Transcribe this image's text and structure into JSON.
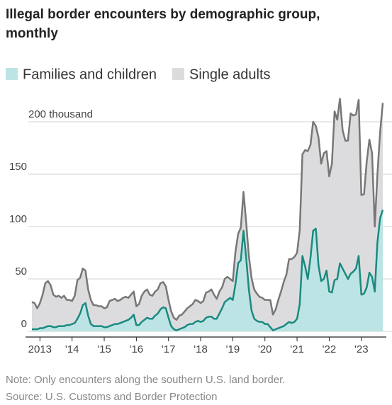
{
  "chart_data": {
    "type": "stacked_area",
    "title": [
      "Illegal border encounters by demographic group,",
      "monthly"
    ],
    "note": "Note: Only encounters along the southern U.S. land border.",
    "source": "Source: U.S. Customs and Border Protection",
    "categories": [
      null,
      null,
      null,
      "2013",
      null,
      null,
      null,
      null,
      null,
      null,
      null,
      null,
      null,
      null,
      null,
      "'14",
      null,
      null,
      null,
      null,
      null,
      null,
      null,
      null,
      null,
      null,
      null,
      "'15",
      null,
      null,
      null,
      null,
      null,
      null,
      null,
      null,
      null,
      null,
      null,
      "'16",
      null,
      null,
      null,
      null,
      null,
      null,
      null,
      null,
      null,
      null,
      null,
      "'17",
      null,
      null,
      null,
      null,
      null,
      null,
      null,
      null,
      null,
      null,
      null,
      "'18",
      null,
      null,
      null,
      null,
      null,
      null,
      null,
      null,
      null,
      null,
      null,
      "'19",
      null,
      null,
      null,
      null,
      null,
      null,
      null,
      null,
      null,
      null,
      null,
      "'20",
      null,
      null,
      null,
      null,
      null,
      null,
      null,
      null,
      null,
      null,
      null,
      "'21",
      null,
      null,
      null,
      null,
      null,
      null,
      null,
      null,
      null,
      null,
      null,
      "'22",
      null,
      null,
      null,
      null,
      null,
      null,
      null,
      null,
      null,
      null,
      null,
      "'23",
      null,
      null,
      null,
      null,
      null,
      null,
      null,
      null
    ],
    "series": [
      {
        "name": "Families and children",
        "color": "#bde4e4",
        "line_color": "#1a8a80",
        "values": [
          2,
          2,
          2,
          3,
          3,
          4,
          5,
          5,
          4,
          4,
          5,
          5,
          5,
          6,
          6,
          7,
          8,
          12,
          17,
          25,
          27,
          15,
          7,
          5,
          5,
          5,
          5,
          4,
          4,
          5,
          6,
          7,
          7,
          8,
          9,
          10,
          11,
          13,
          16,
          6,
          6,
          9,
          11,
          13,
          12,
          12,
          15,
          17,
          21,
          23,
          22,
          13,
          5,
          2,
          1,
          2,
          3,
          4,
          6,
          7,
          7,
          9,
          10,
          9,
          10,
          13,
          14,
          14,
          12,
          12,
          17,
          22,
          28,
          30,
          32,
          30,
          45,
          65,
          68,
          96,
          70,
          40,
          20,
          12,
          10,
          9,
          9,
          7,
          7,
          4,
          1,
          2,
          3,
          4,
          5,
          7,
          9,
          8,
          9,
          12,
          26,
          72,
          62,
          50,
          70,
          96,
          98,
          63,
          48,
          50,
          58,
          38,
          37,
          49,
          50,
          65,
          60,
          55,
          50,
          55,
          57,
          60,
          72,
          35,
          36,
          42,
          56,
          52,
          38,
          85,
          108,
          116
        ]
      },
      {
        "name": "Single adults",
        "color": "#dcdcde",
        "line_color": "#777777",
        "values": [
          26,
          25,
          20,
          24,
          32,
          42,
          43,
          39,
          31,
          29,
          29,
          27,
          29,
          24,
          24,
          22,
          26,
          37,
          34,
          35,
          31,
          25,
          23,
          20,
          20,
          19,
          19,
          18,
          19,
          24,
          24,
          24,
          22,
          22,
          23,
          23,
          21,
          22,
          22,
          18,
          20,
          25,
          27,
          27,
          23,
          22,
          23,
          23,
          25,
          24,
          21,
          17,
          14,
          11,
          10,
          13,
          13,
          15,
          16,
          17,
          19,
          21,
          19,
          18,
          19,
          24,
          24,
          26,
          23,
          19,
          21,
          20,
          22,
          22,
          18,
          18,
          31,
          28,
          31,
          37,
          34,
          32,
          31,
          28,
          26,
          24,
          23,
          23,
          23,
          26,
          15,
          19,
          27,
          34,
          42,
          47,
          60,
          61,
          62,
          63,
          71,
          97,
          111,
          122,
          108,
          104,
          98,
          122,
          112,
          120,
          114,
          110,
          123,
          161,
          152,
          157,
          132,
          127,
          132,
          153,
          149,
          147,
          149,
          95,
          95,
          120,
          127,
          118,
          62,
          65,
          82,
          102
        ]
      }
    ],
    "ylim": [
      0,
      225
    ],
    "yticks": [
      0,
      50,
      100,
      150,
      {
        "value": 200,
        "label": "200 thousand"
      }
    ],
    "grid": true
  }
}
